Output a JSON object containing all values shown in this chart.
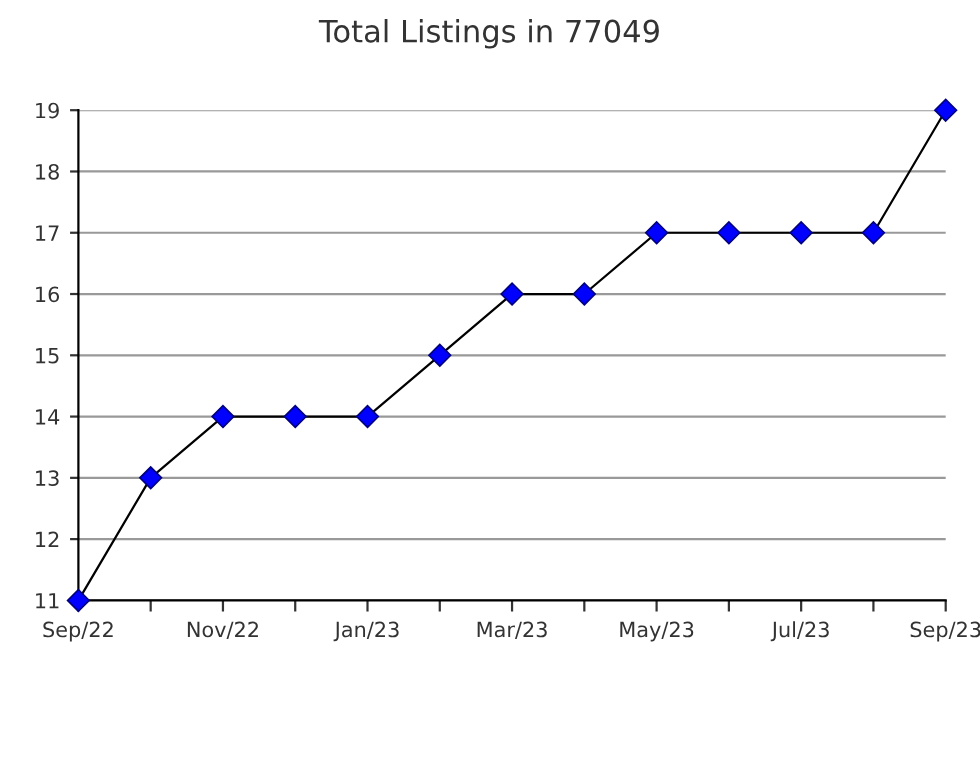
{
  "chart_data": {
    "type": "line",
    "title": "Total Listings in 77049",
    "categories": [
      "Sep/22",
      null,
      "Nov/22",
      null,
      "Jan/23",
      null,
      "Mar/23",
      null,
      "May/23",
      null,
      "Jul/23",
      null,
      "Sep/23"
    ],
    "series": [
      {
        "color": "#0000ff",
        "values": [
          11,
          13,
          14,
          14,
          14,
          15,
          16,
          16,
          17,
          17,
          17,
          17,
          19
        ]
      }
    ],
    "ylim": [
      11,
      19
    ],
    "yticks": [
      11,
      12,
      13,
      14,
      15,
      16,
      17,
      18,
      19
    ],
    "grid": "y",
    "marker": "diamond",
    "line_style": "solid",
    "legend": false
  }
}
